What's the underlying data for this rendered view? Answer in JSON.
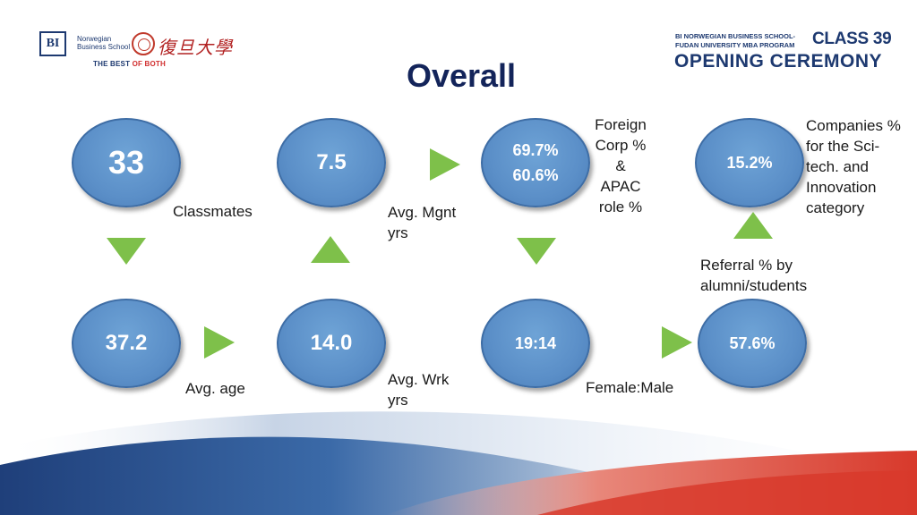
{
  "header": {
    "bi_logo_text": "BI",
    "bi_name": "Norwegian Business School",
    "fudan_name": "復旦大學",
    "tagline_main": "THE BEST ",
    "tagline_accent": "OF BOTH",
    "program_line1": "BI NORWEGIAN BUSINESS SCHOOL-",
    "program_line2": "FUDAN UNIVERSITY MBA PROGRAM",
    "class_label": "CLASS 39",
    "ceremony_label": "OPENING CEREMONY"
  },
  "title": "Overall",
  "stats": {
    "classmates": {
      "value": "33",
      "label": "Classmates"
    },
    "age": {
      "value": "37.2",
      "label": "Avg. age"
    },
    "work_years": {
      "value": "14.0",
      "label_line1": "Avg. Wrk",
      "label_line2": "yrs"
    },
    "mgmt_years": {
      "value": "7.5",
      "label_line1": "Avg. Mgnt",
      "label_line2": "yrs"
    },
    "foreign_corp": {
      "value1": "69.7%",
      "value2": "60.6%",
      "label_line1": "Foreign",
      "label_line2": "Corp %",
      "label_line3": "&",
      "label_line4": "APAC",
      "label_line5": "role %"
    },
    "gender": {
      "value": "19:14",
      "label": "Female:Male"
    },
    "referral": {
      "value": "57.6%",
      "label_line1": "Referral % by",
      "label_line2": "alumni/students"
    },
    "companies": {
      "value": "15.2%",
      "label_line1": "Companies %",
      "label_line2": "for the Sci-",
      "label_line3": "tech. and",
      "label_line4": "Innovation",
      "label_line5": "category"
    }
  },
  "colors": {
    "circle_fill": "#5b8fc8",
    "arrow_green": "#7ec04a",
    "title_navy": "#13245a",
    "brand_red": "#d12e2e"
  }
}
